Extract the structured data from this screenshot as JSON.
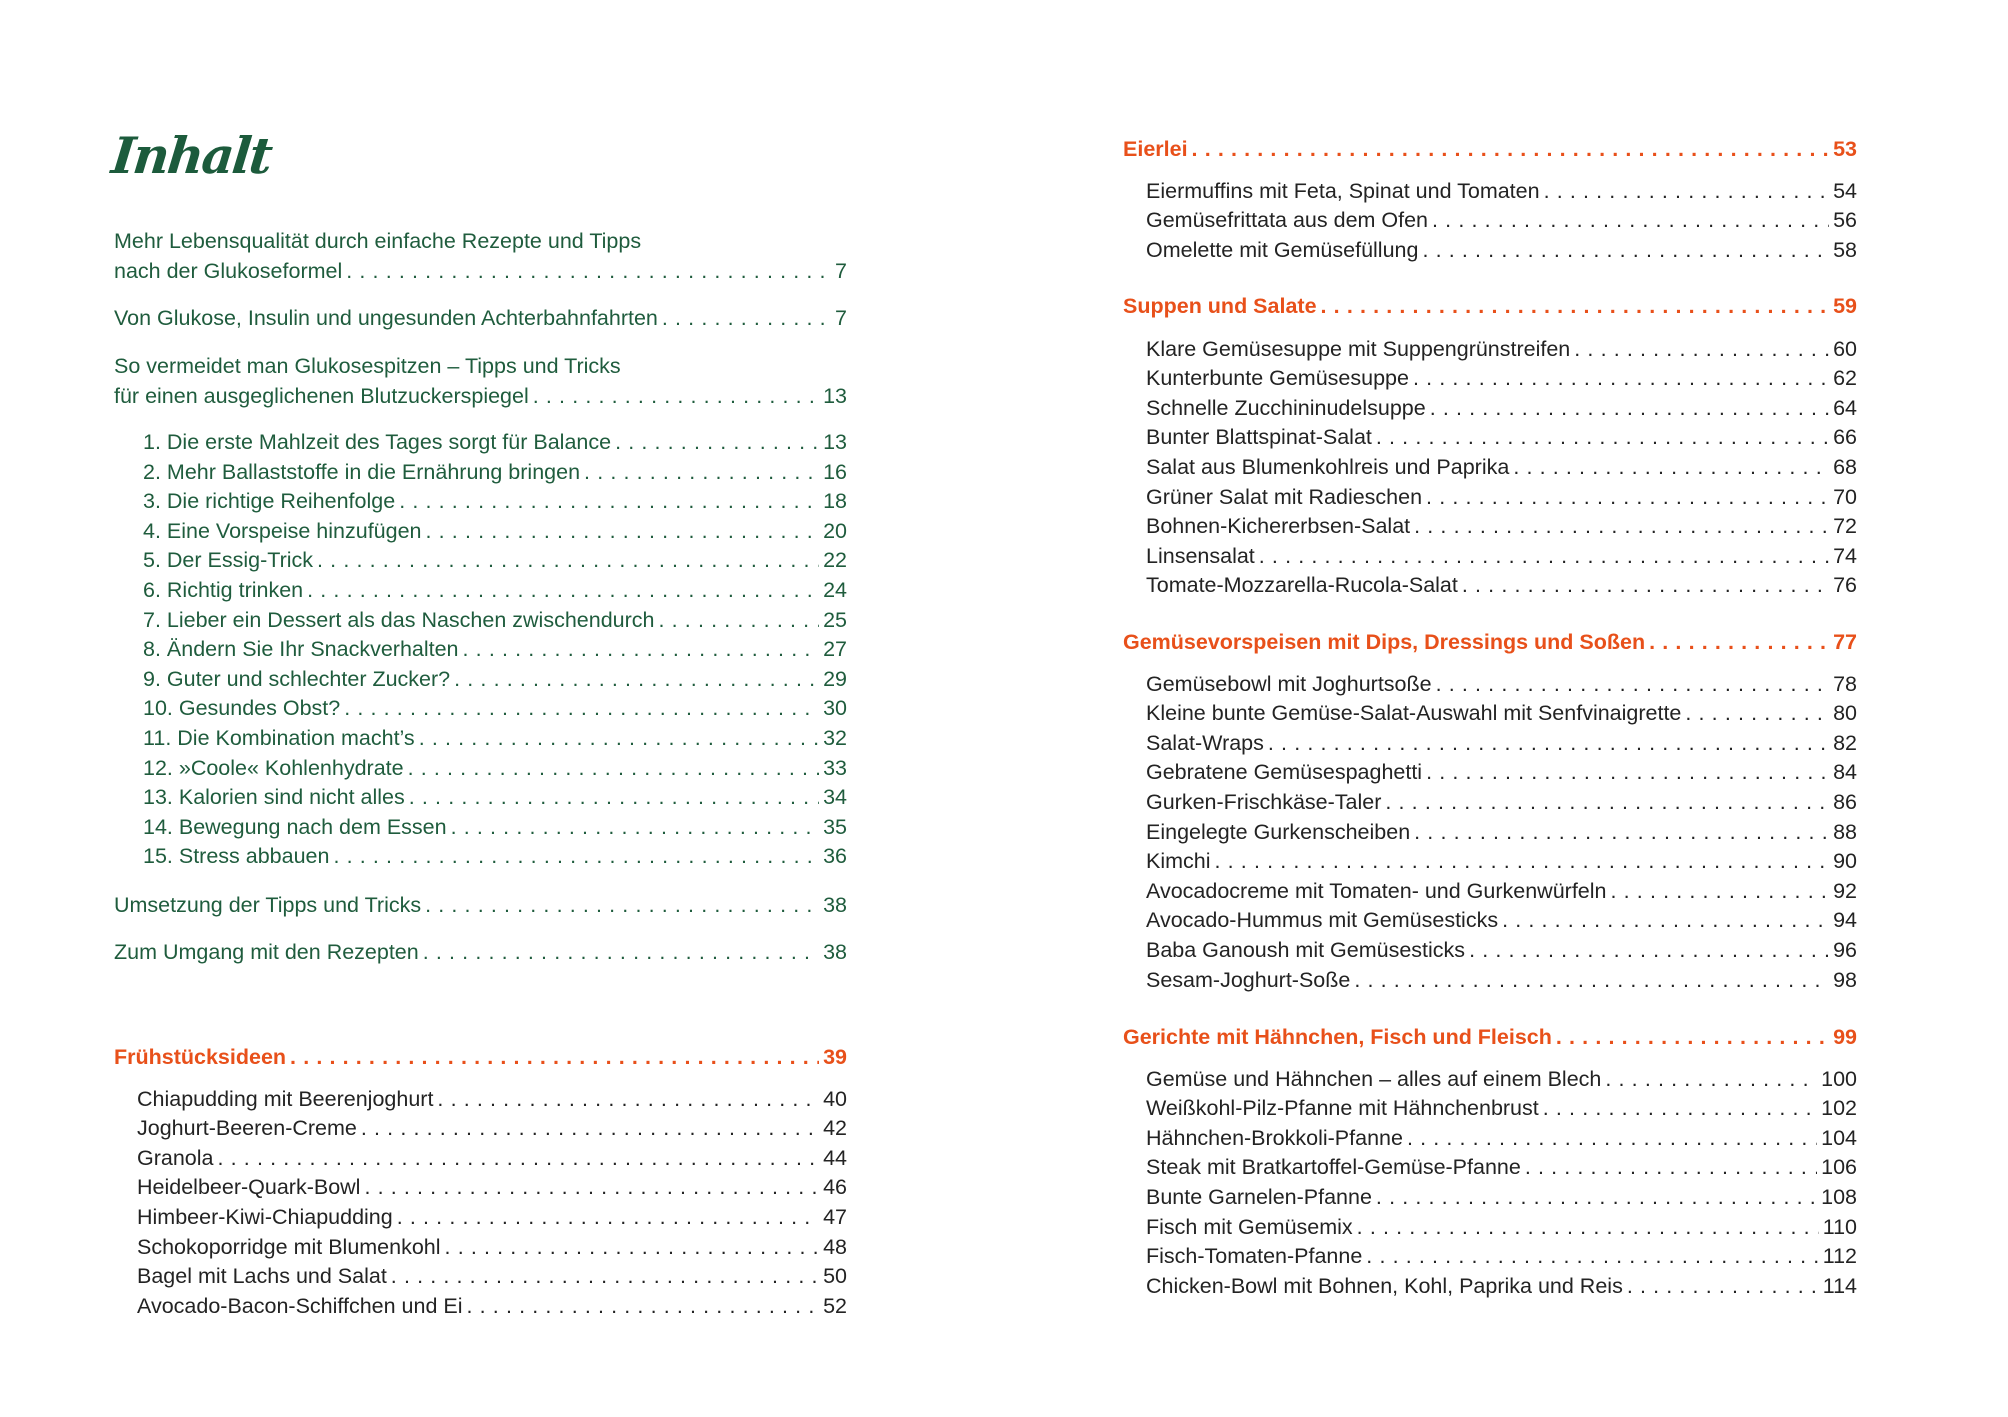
{
  "title": "Inhalt",
  "colors": {
    "green": "#1f5c3d",
    "orange": "#e8501a",
    "text": "#232323"
  },
  "left": {
    "intro": [
      {
        "lines": [
          "Mehr Lebensqualität durch einfache Rezepte und Tipps",
          "nach der Glukoseformel"
        ],
        "page": "7"
      },
      {
        "lines": [
          "Von Glukose, Insulin und ungesunden Achterbahnfahrten"
        ],
        "page": "7"
      },
      {
        "lines": [
          "So vermeidet man Glukosespitzen – Tipps und Tricks",
          "für einen ausgeglichenen Blutzuckerspiegel"
        ],
        "page": "13"
      }
    ],
    "tips": [
      {
        "label": "1. Die erste Mahlzeit des Tages sorgt für Balance",
        "page": "13"
      },
      {
        "label": "2. Mehr Ballaststoffe in die Ernährung bringen",
        "page": "16"
      },
      {
        "label": "3. Die richtige Reihenfolge",
        "page": "18"
      },
      {
        "label": "4. Eine Vorspeise hinzufügen",
        "page": "20"
      },
      {
        "label": "5. Der Essig-Trick",
        "page": "22"
      },
      {
        "label": "6. Richtig trinken",
        "page": "24"
      },
      {
        "label": "7. Lieber ein Dessert als das Naschen zwischendurch",
        "page": "25"
      },
      {
        "label": "8. Ändern Sie Ihr Snackverhalten",
        "page": "27"
      },
      {
        "label": "9. Guter und schlechter Zucker?",
        "page": "29"
      },
      {
        "label": "10. Gesundes Obst?",
        "page": "30"
      },
      {
        "label": "11. Die Kombination macht’s",
        "page": "32"
      },
      {
        "label": "12. »Coole« Kohlenhydrate",
        "page": "33"
      },
      {
        "label": "13. Kalorien sind nicht alles",
        "page": "34"
      },
      {
        "label": "14. Bewegung nach dem Essen",
        "page": "35"
      },
      {
        "label": "15. Stress abbauen",
        "page": "36"
      }
    ],
    "outro": [
      {
        "label": "Umsetzung der Tipps und Tricks",
        "page": "38"
      },
      {
        "label": "Zum Umgang mit den Rezepten",
        "page": "38"
      }
    ],
    "sections": [
      {
        "heading": "Frühstücksideen",
        "page": "39",
        "items": [
          {
            "label": "Chiapudding mit Beerenjoghurt",
            "page": "40"
          },
          {
            "label": "Joghurt-Beeren-Creme",
            "page": "42"
          },
          {
            "label": "Granola",
            "page": "44"
          },
          {
            "label": "Heidelbeer-Quark-Bowl",
            "page": "46"
          },
          {
            "label": "Himbeer-Kiwi-Chiapudding",
            "page": "47"
          },
          {
            "label": "Schokoporridge mit Blumenkohl",
            "page": "48"
          },
          {
            "label": "Bagel mit Lachs und Salat",
            "page": "50"
          },
          {
            "label": "Avocado-Bacon-Schiffchen und Ei",
            "page": "52"
          }
        ]
      }
    ]
  },
  "right": {
    "sections": [
      {
        "heading": "Eierlei",
        "page": "53",
        "items": [
          {
            "label": "Eiermuffins mit Feta, Spinat und Tomaten",
            "page": "54"
          },
          {
            "label": "Gemüsefrittata aus dem Ofen",
            "page": "56"
          },
          {
            "label": "Omelette mit Gemüsefüllung",
            "page": "58"
          }
        ]
      },
      {
        "heading": "Suppen und Salate",
        "page": "59",
        "items": [
          {
            "label": "Klare Gemüsesuppe mit Suppengrünstreifen",
            "page": "60"
          },
          {
            "label": "Kunterbunte Gemüsesuppe",
            "page": "62"
          },
          {
            "label": "Schnelle Zucchininudelsuppe",
            "page": "64"
          },
          {
            "label": "Bunter Blattspinat-Salat",
            "page": "66"
          },
          {
            "label": "Salat aus Blumenkohlreis und Paprika",
            "page": "68"
          },
          {
            "label": "Grüner Salat mit Radieschen",
            "page": "70"
          },
          {
            "label": "Bohnen-Kichererbsen-Salat",
            "page": "72"
          },
          {
            "label": "Linsensalat",
            "page": "74"
          },
          {
            "label": "Tomate-Mozzarella-Rucola-Salat",
            "page": "76"
          }
        ]
      },
      {
        "heading": "Gemüsevorspeisen mit Dips, Dressings und Soßen",
        "page": "77",
        "items": [
          {
            "label": "Gemüsebowl mit Joghurtsoße",
            "page": "78"
          },
          {
            "label": "Kleine bunte Gemüse-Salat-Auswahl mit Senfvinaigrette",
            "page": "80"
          },
          {
            "label": "Salat-Wraps",
            "page": "82"
          },
          {
            "label": "Gebratene Gemüsespaghetti",
            "page": "84"
          },
          {
            "label": "Gurken-Frischkäse-Taler",
            "page": "86"
          },
          {
            "label": "Eingelegte Gurkenscheiben",
            "page": "88"
          },
          {
            "label": "Kimchi",
            "page": "90"
          },
          {
            "label": "Avocadocreme mit Tomaten- und Gurkenwürfeln",
            "page": "92"
          },
          {
            "label": "Avocado-Hummus mit Gemüsesticks",
            "page": "94"
          },
          {
            "label": "Baba Ganoush mit Gemüsesticks",
            "page": "96"
          },
          {
            "label": "Sesam-Joghurt-Soße",
            "page": "98"
          }
        ]
      },
      {
        "heading": "Gerichte mit Hähnchen, Fisch und Fleisch",
        "page": "99",
        "items": [
          {
            "label": "Gemüse und Hähnchen – alles auf einem Blech",
            "page": "100"
          },
          {
            "label": "Weißkohl-Pilz-Pfanne mit Hähnchenbrust",
            "page": "102"
          },
          {
            "label": "Hähnchen-Brokkoli-Pfanne",
            "page": "104"
          },
          {
            "label": "Steak mit Bratkartoffel-Gemüse-Pfanne",
            "page": "106"
          },
          {
            "label": "Bunte Garnelen-Pfanne",
            "page": "108"
          },
          {
            "label": "Fisch mit Gemüsemix",
            "page": "110"
          },
          {
            "label": "Fisch-Tomaten-Pfanne",
            "page": "112"
          },
          {
            "label": "Chicken-Bowl mit Bohnen, Kohl, Paprika und Reis",
            "page": "114"
          }
        ]
      }
    ]
  }
}
